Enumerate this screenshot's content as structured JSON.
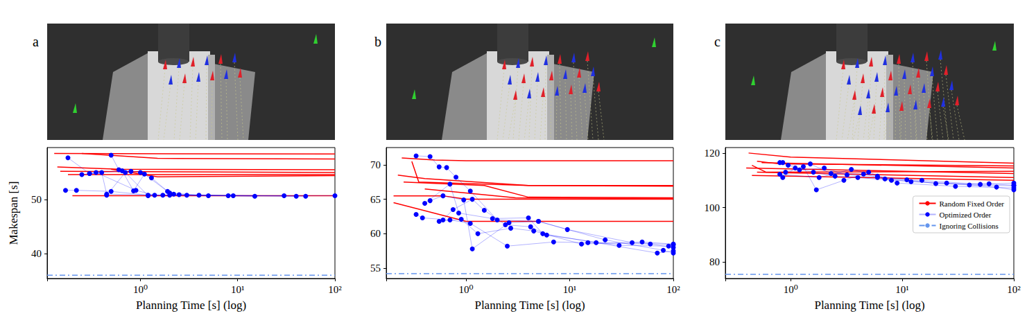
{
  "chart_data": [
    {
      "type": "line",
      "title": "a",
      "log": "x",
      "grid": false,
      "legend": false,
      "x_label": "Planning Time [s] (log)",
      "y_label": "Makespan [s]",
      "xlim": [
        0.11,
        100
      ],
      "xticks": [
        {
          "value": 1,
          "label": "10⁰"
        },
        {
          "value": 10,
          "label": "10¹"
        },
        {
          "value": 100,
          "label": "10²"
        }
      ],
      "ylim": [
        35.4,
        59.6
      ],
      "yticks": [
        40,
        50
      ],
      "series": [
        {
          "name": "Random Fixed Order",
          "type": "line",
          "color": "#ff0000",
          "line_style": "solid",
          "marker": "none",
          "values": [
            [
              [
                0.13,
                58.5
              ],
              [
                100,
                58.4
              ]
            ],
            [
              [
                0.25,
                58.5
              ],
              [
                1.5,
                57.6
              ],
              [
                100,
                57.5
              ]
            ],
            [
              [
                0.14,
                56.0
              ],
              [
                0.6,
                55.6
              ],
              [
                100,
                55.5
              ]
            ],
            [
              [
                0.15,
                55.2
              ],
              [
                100,
                55.0
              ]
            ],
            [
              [
                0.18,
                54.6
              ],
              [
                100,
                54.6
              ]
            ],
            [
              [
                0.5,
                55.6
              ],
              [
                1.5,
                54.2
              ],
              [
                100,
                54.4
              ]
            ],
            [
              [
                0.2,
                50.7
              ],
              [
                100,
                50.7
              ]
            ]
          ]
        },
        {
          "name": "Optimized Order",
          "type": "line",
          "color": "#0000ff",
          "line_style": "solid",
          "marker": "circle",
          "values": [
            [
              [
                0.17,
                51.7
              ],
              [
                0.22,
                51.7
              ],
              [
                0.5,
                51.5
              ],
              [
                1.2,
                50.8
              ],
              [
                2,
                50.8
              ],
              [
                8,
                50.7
              ],
              [
                100,
                50.7
              ]
            ],
            [
              [
                0.18,
                57.7
              ],
              [
                0.3,
                54.8
              ],
              [
                0.35,
                55.0
              ],
              [
                0.9,
                51.7
              ],
              [
                1.4,
                50.8
              ],
              [
                3,
                50.8
              ],
              [
                30,
                50.7
              ]
            ],
            [
              [
                0.25,
                54.6
              ],
              [
                0.4,
                55.0
              ],
              [
                0.45,
                51.0
              ],
              [
                1.7,
                50.8
              ],
              [
                9,
                50.7
              ]
            ],
            [
              [
                0.5,
                58.2
              ],
              [
                0.6,
                55.5
              ],
              [
                0.8,
                55.2
              ],
              [
                1.0,
                55.0
              ],
              [
                1.3,
                54.0
              ],
              [
                2,
                51.2
              ],
              [
                4,
                50.8
              ],
              [
                15,
                50.6
              ]
            ],
            [
              [
                0.45,
                50.8
              ],
              [
                0.7,
                55.0
              ],
              [
                1.2,
                50.7
              ],
              [
                2.5,
                50.9
              ],
              [
                50,
                50.6
              ]
            ],
            [
              [
                0.3,
                54.8
              ],
              [
                0.65,
                55.3
              ],
              [
                0.85,
                51.6
              ],
              [
                1.1,
                54.7
              ],
              [
                1.9,
                51.5
              ],
              [
                2.2,
                51.0
              ],
              [
                5,
                50.7
              ],
              [
                40,
                50.6
              ]
            ]
          ]
        },
        {
          "name": "Ignoring Collisions",
          "type": "hline",
          "color": "#6495ed",
          "line_style": "dashdot",
          "marker": "none",
          "values": [
            36
          ]
        }
      ]
    },
    {
      "type": "line",
      "title": "b",
      "log": "x",
      "grid": false,
      "legend": false,
      "x_label": "Planning Time [s] (log)",
      "xlim": [
        0.17,
        100
      ],
      "xticks": [
        {
          "value": 1,
          "label": "10⁰"
        },
        {
          "value": 10,
          "label": "10¹"
        },
        {
          "value": 100,
          "label": "10²"
        }
      ],
      "ylim": [
        53.5,
        72.5
      ],
      "yticks": [
        55,
        60,
        65,
        70
      ],
      "series": [
        {
          "name": "Random Fixed Order",
          "type": "line",
          "color": "#ff0000",
          "line_style": "solid",
          "marker": "none",
          "values": [
            [
              [
                0.24,
                71.0
              ],
              [
                0.5,
                70.7
              ],
              [
                1,
                70.6
              ],
              [
                100,
                70.6
              ]
            ],
            [
              [
                0.3,
                70.5
              ],
              [
                0.35,
                67.5
              ],
              [
                4,
                67.0
              ],
              [
                100,
                67.0
              ]
            ],
            [
              [
                0.22,
                68.5
              ],
              [
                0.4,
                68.0
              ],
              [
                4,
                67.0
              ],
              [
                100,
                66.9
              ]
            ],
            [
              [
                0.25,
                67.5
              ],
              [
                1.5,
                67.0
              ],
              [
                4,
                65.3
              ],
              [
                100,
                65.2
              ]
            ],
            [
              [
                0.2,
                65.5
              ],
              [
                0.6,
                65.5
              ],
              [
                1,
                65.0
              ],
              [
                100,
                65.0
              ]
            ],
            [
              [
                0.4,
                66.5
              ],
              [
                3,
                65.2
              ],
              [
                100,
                65.1
              ]
            ],
            [
              [
                0.2,
                64.5
              ],
              [
                1,
                61.8
              ],
              [
                100,
                61.8
              ]
            ]
          ]
        },
        {
          "name": "Optimized Order",
          "type": "line",
          "color": "#0000ff",
          "line_style": "solid",
          "marker": "circle",
          "values": [
            [
              [
                0.33,
                71.3
              ],
              [
                0.45,
                71.2
              ],
              [
                0.55,
                69.7
              ],
              [
                0.65,
                69.6
              ],
              [
                0.8,
                68.2
              ],
              [
                1.1,
                66.2
              ],
              [
                2,
                62.0
              ],
              [
                5,
                61.8
              ],
              [
                9.5,
                60.6
              ],
              [
                40,
                58.7
              ],
              [
                100,
                58.4
              ]
            ],
            [
              [
                0.33,
                62.8
              ],
              [
                0.38,
                62.3
              ],
              [
                0.7,
                62.0
              ],
              [
                1.1,
                61.5
              ],
              [
                2.5,
                58.2
              ],
              [
                7,
                58.8
              ],
              [
                15,
                58.7
              ],
              [
                60,
                58.5
              ],
              [
                100,
                58.0
              ]
            ],
            [
              [
                0.45,
                64.8
              ],
              [
                0.6,
                65.5
              ],
              [
                0.95,
                64.9
              ],
              [
                1.15,
                57.8
              ],
              [
                2.6,
                61.6
              ],
              [
                5,
                61.8
              ],
              [
                22,
                59.1
              ],
              [
                80,
                57.6
              ],
              [
                100,
                57.2
              ]
            ],
            [
              [
                0.4,
                64.4
              ],
              [
                0.7,
                67.2
              ],
              [
                0.85,
                63.0
              ],
              [
                1.8,
                62.2
              ],
              [
                4,
                62.3
              ],
              [
                5.5,
                60.0
              ],
              [
                18,
                58.7
              ],
              [
                70,
                57.2
              ],
              [
                100,
                57.5
              ]
            ],
            [
              [
                0.6,
                62.0
              ],
              [
                0.75,
                63.5
              ],
              [
                1.15,
                65.0
              ],
              [
                1.5,
                63.4
              ],
              [
                2.4,
                61.3
              ],
              [
                4.2,
                61.0
              ],
              [
                6,
                59.8
              ],
              [
                30,
                58.3
              ],
              [
                90,
                58.2
              ]
            ],
            [
              [
                0.55,
                61.8
              ],
              [
                0.9,
                62.1
              ],
              [
                1.3,
                60.0
              ],
              [
                2.7,
                60.8
              ],
              [
                4.5,
                60.4
              ],
              [
                13,
                58.5
              ],
              [
                50,
                58.8
              ],
              [
                100,
                58.5
              ]
            ]
          ]
        },
        {
          "name": "Ignoring Collisions",
          "type": "hline",
          "color": "#6495ed",
          "line_style": "dashdot",
          "marker": "none",
          "values": [
            54.2
          ]
        }
      ]
    },
    {
      "type": "line",
      "title": "c",
      "log": "x",
      "grid": false,
      "legend": "right",
      "x_label": "Planning Time [s] (log)",
      "xlim": [
        0.26,
        100
      ],
      "xticks": [
        {
          "value": 1,
          "label": "10⁰"
        },
        {
          "value": 10,
          "label": "10¹"
        },
        {
          "value": 100,
          "label": "10²"
        }
      ],
      "ylim": [
        74,
        122
      ],
      "yticks": [
        80,
        100,
        120
      ],
      "series": [
        {
          "name": "Random Fixed Order",
          "type": "line",
          "color": "#ff0000",
          "line_style": "solid",
          "marker": "none",
          "values": [
            [
              [
                0.42,
                120.0
              ],
              [
                1,
                118.5
              ],
              [
                100,
                116.3
              ]
            ],
            [
              [
                0.55,
                116.5
              ],
              [
                100,
                114.5
              ]
            ],
            [
              [
                0.5,
                117.0
              ],
              [
                0.8,
                116.0
              ],
              [
                100,
                115.3
              ]
            ],
            [
              [
                0.45,
                115.5
              ],
              [
                0.6,
                113.0
              ],
              [
                100,
                113.3
              ]
            ],
            [
              [
                0.4,
                114.5
              ],
              [
                100,
                112.5
              ]
            ],
            [
              [
                0.5,
                113.0
              ],
              [
                100,
                111.0
              ]
            ],
            [
              [
                0.45,
                111.8
              ],
              [
                100,
                110.0
              ]
            ]
          ]
        },
        {
          "name": "Optimized Order",
          "type": "line",
          "color": "#0000ff",
          "line_style": "solid",
          "marker": "circle",
          "values": [
            [
              [
                0.8,
                116.5
              ],
              [
                0.85,
                116.5
              ],
              [
                1.2,
                113.8
              ],
              [
                2,
                114.5
              ],
              [
                3.2,
                112.0
              ],
              [
                6,
                111.0
              ],
              [
                12,
                109.5
              ],
              [
                40,
                108.3
              ],
              [
                100,
                108.0
              ]
            ],
            [
              [
                0.85,
                111.0
              ],
              [
                1.1,
                114.5
              ],
              [
                1.6,
                113.0
              ],
              [
                2.5,
                111.5
              ],
              [
                4,
                111.0
              ],
              [
                8,
                110.0
              ],
              [
                25,
                109.0
              ],
              [
                70,
                107.5
              ],
              [
                100,
                106.5
              ]
            ],
            [
              [
                0.9,
                113.0
              ],
              [
                1.3,
                115.0
              ],
              [
                1.7,
                106.5
              ],
              [
                3,
                110.0
              ],
              [
                5,
                113.0
              ],
              [
                9,
                109.0
              ],
              [
                30,
                107.8
              ],
              [
                100,
                107.2
              ]
            ],
            [
              [
                0.95,
                115.5
              ],
              [
                1.5,
                116.0
              ],
              [
                2.3,
                112.5
              ],
              [
                4.5,
                112.3
              ],
              [
                7,
                110.5
              ],
              [
                15,
                110.0
              ],
              [
                50,
                108.5
              ],
              [
                100,
                109.0
              ]
            ],
            [
              [
                0.8,
                112.2
              ],
              [
                1.8,
                111.0
              ],
              [
                3.5,
                114.0
              ],
              [
                6,
                111.5
              ],
              [
                11,
                110.2
              ],
              [
                20,
                108.8
              ],
              [
                60,
                108.7
              ],
              [
                100,
                108.2
              ]
            ]
          ]
        },
        {
          "name": "Ignoring Collisions",
          "type": "hline",
          "color": "#6495ed",
          "line_style": "dashdot",
          "marker": "none",
          "values": [
            75.5
          ]
        }
      ]
    }
  ]
}
